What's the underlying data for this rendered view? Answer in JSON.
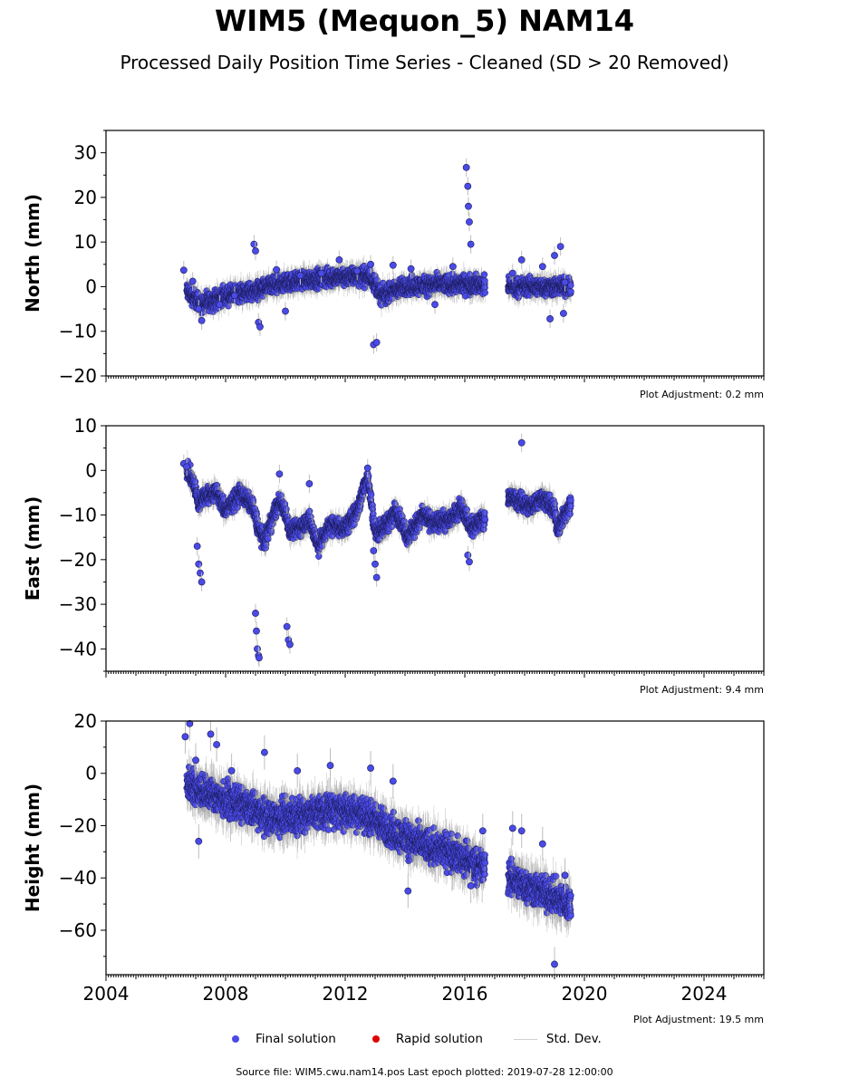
{
  "title": "WIM5 (Mequon_5) NAM14",
  "subtitle": "Processed Daily Position Time Series - Cleaned (SD > 20 Removed)",
  "footer": "Source file: WIM5.cwu.nam14.pos  Last epoch plotted: 2019-07-28 12:00:00",
  "legend": {
    "final": "Final solution",
    "rapid": "Rapid solution",
    "std": "Std. Dev.",
    "final_color": "#4a4ae8",
    "rapid_color": "#e00000",
    "std_color": "#cfcfcf"
  },
  "adjustments": {
    "north": "Plot Adjustment: 0.2 mm",
    "east": "Plot Adjustment: 9.4 mm",
    "height": "Plot Adjustment: 19.5 mm"
  },
  "chart_data": {
    "type": "scatter",
    "x_axis": {
      "label": "",
      "range": [
        2004.0,
        2026.0
      ],
      "ticks": [
        2004,
        2008,
        2012,
        2016,
        2020,
        2024
      ],
      "tick_labels": [
        "2004",
        "2008",
        "2012",
        "2016",
        "2020",
        "2024"
      ],
      "minor_step_years": 0.25
    },
    "panels": [
      {
        "key": "north",
        "ylabel": "North (mm)",
        "ylim": [
          -20,
          35
        ],
        "yticks": [
          -20,
          -10,
          0,
          10,
          20,
          30
        ],
        "ytick_labels": [
          "−20",
          "−10",
          "0",
          "10",
          "20",
          "30"
        ],
        "trend": [
          [
            2006.7,
            -1
          ],
          [
            2007.2,
            -4
          ],
          [
            2008.0,
            -2
          ],
          [
            2008.9,
            -1
          ],
          [
            2009.5,
            0
          ],
          [
            2010.5,
            1.5
          ],
          [
            2011.5,
            2
          ],
          [
            2012.5,
            2.5
          ],
          [
            2012.9,
            2
          ],
          [
            2013.2,
            -2
          ],
          [
            2014.0,
            0
          ],
          [
            2015.0,
            0.5
          ],
          [
            2016.0,
            0.5
          ],
          [
            2016.6,
            0.5
          ],
          [
            2017.5,
            0
          ],
          [
            2018.5,
            0
          ],
          [
            2019.5,
            0
          ]
        ],
        "series": [
          {
            "name": "Final solution",
            "type": "scatter",
            "x": [
              2006.6,
              2006.9,
              2007.1,
              2007.2,
              2007.8,
              2008.3,
              2008.95,
              2009.0,
              2009.1,
              2009.15,
              2009.7,
              2010.0,
              2010.5,
              2011.2,
              2011.8,
              2012.4,
              2012.85,
              2012.95,
              2013.05,
              2013.6,
              2014.2,
              2015.0,
              2015.6,
              2016.05,
              2016.1,
              2016.12,
              2016.15,
              2016.2,
              2017.6,
              2017.9,
              2018.6,
              2018.85,
              2019.0,
              2019.2,
              2019.3,
              2019.35
            ],
            "y": [
              3.7,
              1.2,
              -5.0,
              -7.6,
              -4.0,
              -2.0,
              9.5,
              8.0,
              -8.0,
              -9.0,
              3.8,
              -5.5,
              2.5,
              3.0,
              6.0,
              3.5,
              5.0,
              -13.0,
              -12.5,
              4.8,
              4.0,
              -4.0,
              4.5,
              26.7,
              22.5,
              18.0,
              14.5,
              9.5,
              3.0,
              6.0,
              4.5,
              -7.2,
              7.0,
              9.0,
              -6.0,
              1.0
            ]
          },
          {
            "name": "Rapid solution",
            "type": "scatter",
            "x": [],
            "y": []
          }
        ]
      },
      {
        "key": "east",
        "ylabel": "East (mm)",
        "ylim": [
          -45,
          10
        ],
        "yticks": [
          -40,
          -30,
          -20,
          -10,
          0,
          10
        ],
        "ytick_labels": [
          "−40",
          "−30",
          "−20",
          "−10",
          "0",
          "10"
        ],
        "trend": [
          [
            2006.7,
            0
          ],
          [
            2006.95,
            -3
          ],
          [
            2007.1,
            -8
          ],
          [
            2007.2,
            -6
          ],
          [
            2007.7,
            -5
          ],
          [
            2008.0,
            -9
          ],
          [
            2008.5,
            -5
          ],
          [
            2008.9,
            -8
          ],
          [
            2009.1,
            -13
          ],
          [
            2009.3,
            -16
          ],
          [
            2009.6,
            -10
          ],
          [
            2009.8,
            -7
          ],
          [
            2010.0,
            -9
          ],
          [
            2010.15,
            -14
          ],
          [
            2010.4,
            -13
          ],
          [
            2010.8,
            -11
          ],
          [
            2011.1,
            -17
          ],
          [
            2011.5,
            -12
          ],
          [
            2012.0,
            -13
          ],
          [
            2012.4,
            -9
          ],
          [
            2012.75,
            -1
          ],
          [
            2013.0,
            -14
          ],
          [
            2013.4,
            -12
          ],
          [
            2013.7,
            -9
          ],
          [
            2014.1,
            -15
          ],
          [
            2014.6,
            -10
          ],
          [
            2015.0,
            -12
          ],
          [
            2015.5,
            -11
          ],
          [
            2015.9,
            -8
          ],
          [
            2016.2,
            -13
          ],
          [
            2016.6,
            -11
          ],
          [
            2017.5,
            -6
          ],
          [
            2018.2,
            -8
          ],
          [
            2018.6,
            -6
          ],
          [
            2019.0,
            -9
          ],
          [
            2019.1,
            -13
          ],
          [
            2019.5,
            -8
          ]
        ],
        "series": [
          {
            "name": "Final solution",
            "type": "scatter",
            "x": [
              2006.6,
              2006.7,
              2007.05,
              2007.1,
              2007.15,
              2007.2,
              2009.0,
              2009.03,
              2009.06,
              2009.1,
              2009.12,
              2009.8,
              2010.05,
              2010.1,
              2010.15,
              2010.8,
              2012.75,
              2012.95,
              2013.0,
              2013.05,
              2016.1,
              2016.15,
              2017.9
            ],
            "y": [
              1.5,
              0.8,
              -17.0,
              -21.0,
              -23.0,
              -25.0,
              -32.0,
              -36.0,
              -40.0,
              -41.5,
              -42.0,
              -0.8,
              -35.0,
              -38.0,
              -39.0,
              -3.0,
              0.5,
              -18.0,
              -21.0,
              -24.0,
              -19.0,
              -20.5,
              6.2
            ]
          },
          {
            "name": "Rapid solution",
            "type": "scatter",
            "x": [],
            "y": []
          }
        ]
      },
      {
        "key": "height",
        "ylabel": "Height (mm)",
        "ylim": [
          -77,
          20
        ],
        "yticks": [
          -60,
          -40,
          -20,
          0,
          20
        ],
        "ytick_labels": [
          "−60",
          "−40",
          "−20",
          "0",
          "20"
        ],
        "trend": [
          [
            2006.6,
            -3
          ],
          [
            2007.5,
            -8
          ],
          [
            2008.5,
            -12
          ],
          [
            2009.5,
            -17
          ],
          [
            2010.5,
            -16
          ],
          [
            2011.5,
            -14
          ],
          [
            2012.5,
            -15
          ],
          [
            2013.0,
            -18
          ],
          [
            2013.5,
            -22
          ],
          [
            2014.5,
            -27
          ],
          [
            2015.5,
            -30
          ],
          [
            2016.6,
            -36
          ],
          [
            2017.5,
            -40
          ],
          [
            2018.5,
            -45
          ],
          [
            2019.5,
            -50
          ]
        ],
        "series": [
          {
            "name": "Final solution",
            "type": "scatter",
            "x": [
              2006.8,
              2006.65,
              2007.0,
              2007.5,
              2007.7,
              2007.1,
              2008.2,
              2009.3,
              2010.4,
              2011.5,
              2012.85,
              2013.6,
              2014.1,
              2016.2,
              2016.6,
              2017.6,
              2017.9,
              2018.6,
              2019.0,
              2019.35
            ],
            "y": [
              19.0,
              14.0,
              5.0,
              15.0,
              11.0,
              -26.0,
              1.0,
              8.0,
              1.0,
              3.0,
              2.0,
              -3.0,
              -45.0,
              -43.0,
              -22.0,
              -21.0,
              -22.0,
              -27.0,
              -73.0,
              -39.0
            ]
          },
          {
            "name": "Rapid solution",
            "type": "scatter",
            "x": [],
            "y": []
          }
        ]
      }
    ]
  }
}
